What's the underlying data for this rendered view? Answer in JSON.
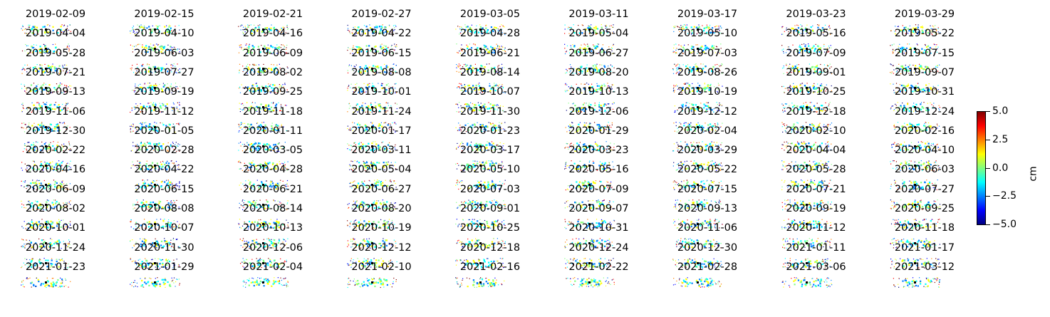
{
  "chart_data": {
    "type": "heatmap",
    "title": "",
    "layout": "small-multiples",
    "rows": 14,
    "cols": 9,
    "colormap": "jet",
    "panel_dates": [
      "2019-02-09",
      "2019-02-15",
      "2019-02-21",
      "2019-02-27",
      "2019-03-05",
      "2019-03-11",
      "2019-03-17",
      "2019-03-23",
      "2019-03-29",
      "2019-04-04",
      "2019-04-10",
      "2019-04-16",
      "2019-04-22",
      "2019-04-28",
      "2019-05-04",
      "2019-05-10",
      "2019-05-16",
      "2019-05-22",
      "2019-05-28",
      "2019-06-03",
      "2019-06-09",
      "2019-06-15",
      "2019-06-21",
      "2019-06-27",
      "2019-07-03",
      "2019-07-09",
      "2019-07-15",
      "2019-07-21",
      "2019-07-27",
      "2019-08-02",
      "2019-08-08",
      "2019-08-14",
      "2019-08-20",
      "2019-08-26",
      "2019-09-01",
      "2019-09-07",
      "2019-09-13",
      "2019-09-19",
      "2019-09-25",
      "2019-10-01",
      "2019-10-07",
      "2019-10-13",
      "2019-10-19",
      "2019-10-25",
      "2019-10-31",
      "2019-11-06",
      "2019-11-12",
      "2019-11-18",
      "2019-11-24",
      "2019-11-30",
      "2019-12-06",
      "2019-12-12",
      "2019-12-18",
      "2019-12-24",
      "2019-12-30",
      "2020-01-05",
      "2020-01-11",
      "2020-01-17",
      "2020-01-23",
      "2020-01-29",
      "2020-02-04",
      "2020-02-10",
      "2020-02-16",
      "2020-02-22",
      "2020-02-28",
      "2020-03-05",
      "2020-03-11",
      "2020-03-17",
      "2020-03-23",
      "2020-03-29",
      "2020-04-04",
      "2020-04-10",
      "2020-04-16",
      "2020-04-22",
      "2020-04-28",
      "2020-05-04",
      "2020-05-10",
      "2020-05-16",
      "2020-05-22",
      "2020-05-28",
      "2020-06-03",
      "2020-06-09",
      "2020-06-15",
      "2020-06-21",
      "2020-06-27",
      "2020-07-03",
      "2020-07-09",
      "2020-07-15",
      "2020-07-21",
      "2020-07-27",
      "2020-08-02",
      "2020-08-08",
      "2020-08-14",
      "2020-08-20",
      "2020-09-01",
      "2020-09-07",
      "2020-09-13",
      "2020-09-19",
      "2020-09-25",
      "2020-10-01",
      "2020-10-07",
      "2020-10-13",
      "2020-10-19",
      "2020-10-25",
      "2020-10-31",
      "2020-11-06",
      "2020-11-12",
      "2020-11-18",
      "2020-11-24",
      "2020-11-30",
      "2020-12-06",
      "2020-12-12",
      "2020-12-18",
      "2020-12-24",
      "2020-12-30",
      "2021-01-11",
      "2021-01-17",
      "2021-01-23",
      "2021-01-29",
      "2021-02-04",
      "2021-02-10",
      "2021-02-16",
      "2021-02-22",
      "2021-02-28",
      "2021-03-06",
      "2021-03-12"
    ],
    "colorbar": {
      "label": "cm",
      "range": [
        -5.0,
        5.0
      ],
      "ticks": [
        {
          "value": 5.0,
          "label": "5.0"
        },
        {
          "value": 2.5,
          "label": "2.5"
        },
        {
          "value": 0.0,
          "label": "0.0"
        },
        {
          "value": -2.5,
          "label": "−2.5"
        },
        {
          "value": -5.0,
          "label": "−5.0"
        }
      ]
    }
  }
}
